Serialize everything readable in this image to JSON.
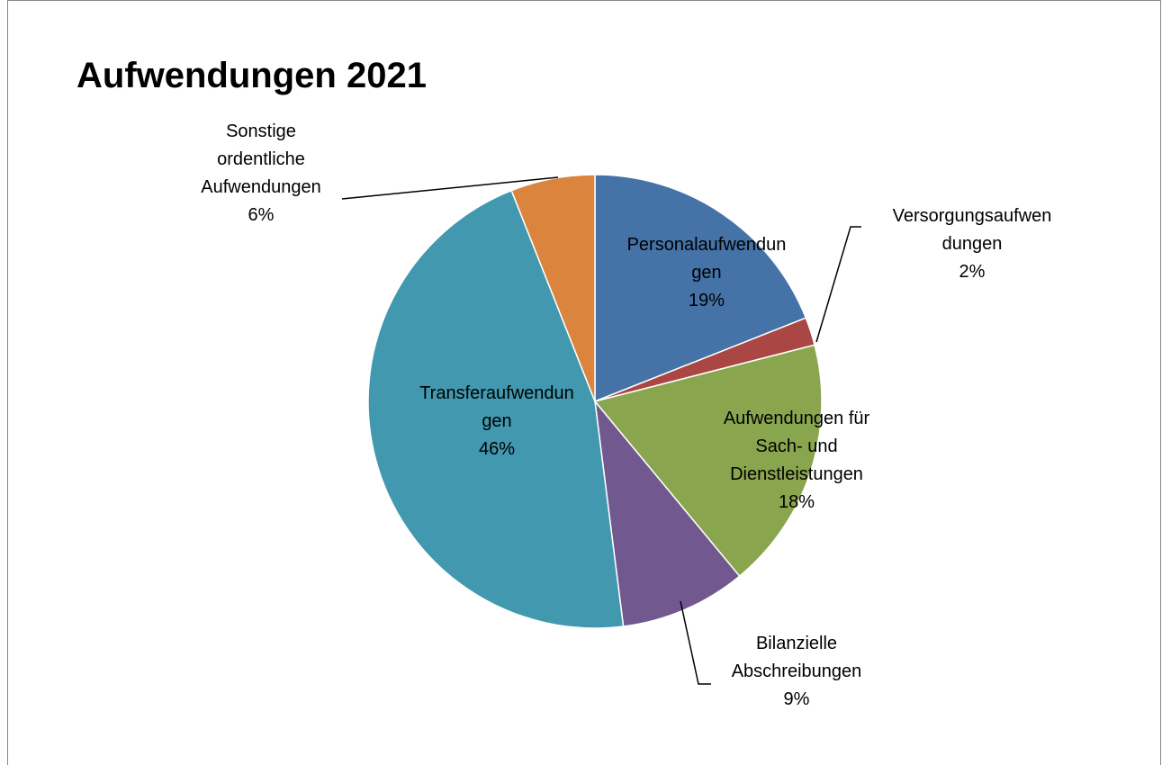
{
  "chart_data": {
    "type": "pie",
    "title": "Aufwendungen 2021",
    "categories": [
      "Personalaufwendun\ngen",
      "Versorgungsaufwen\ndungen",
      "Aufwendungen für\nSach- und\nDienstleistungen",
      "Bilanzielle\nAbschreibungen",
      "Transferaufwendun\ngen",
      "Sonstige\nordentliche\nAufwendungen"
    ],
    "values": [
      19,
      2,
      18,
      9,
      46,
      6
    ],
    "value_labels": [
      "19%",
      "2%",
      "18%",
      "9%",
      "46%",
      "6%"
    ],
    "colors": [
      "#4572a7",
      "#aa4643",
      "#89a54e",
      "#71588f",
      "#4198af",
      "#db843d"
    ]
  }
}
